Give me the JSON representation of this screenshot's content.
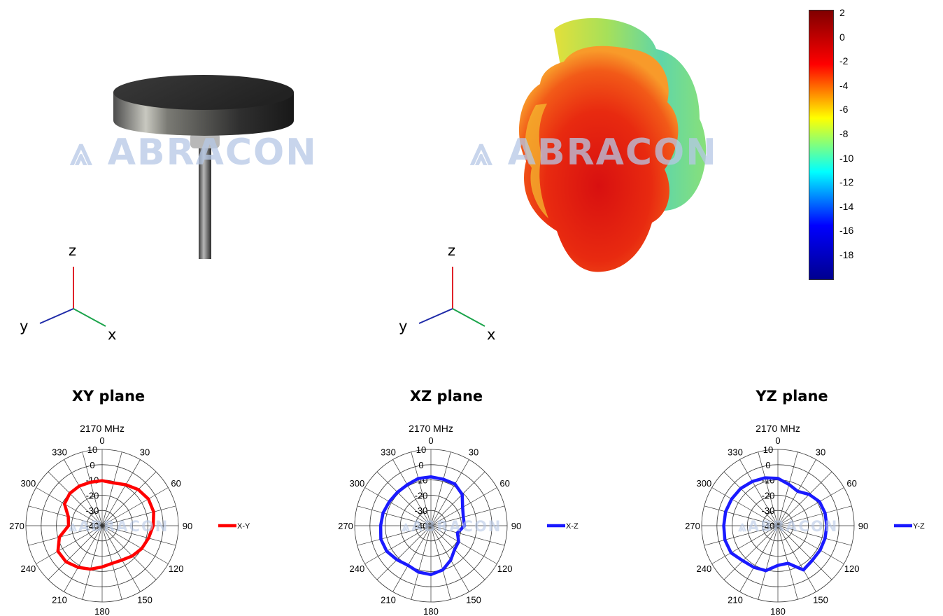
{
  "watermark": {
    "text": "ABRACON"
  },
  "axes_labels": {
    "z": "z",
    "y": "y",
    "x": "x"
  },
  "colorbar": {
    "labels": [
      "2",
      "0",
      "-2",
      "-4",
      "-6",
      "-8",
      "-10",
      "-12",
      "-14",
      "-16",
      "-18"
    ],
    "colors": [
      "#800000",
      "#ff0000",
      "#ffff00",
      "#00ffff",
      "#0000ff",
      "#00008f"
    ]
  },
  "plots": [
    {
      "title": "XY plane",
      "subtitle": "2170 MHz",
      "legend": "X-Y",
      "color": "#ff0000"
    },
    {
      "title": "XZ plane",
      "subtitle": "2170 MHz",
      "legend": "X-Z",
      "color": "#1a1aff"
    },
    {
      "title": "YZ plane",
      "subtitle": "2170 MHz",
      "legend": "Y-Z",
      "color": "#1a1aff"
    }
  ],
  "chart_data": [
    {
      "type": "polar",
      "title": "XY plane",
      "subtitle": "2170 MHz",
      "angle_ticks": [
        "0",
        "30",
        "60",
        "90",
        "120",
        "150",
        "180",
        "210",
        "240",
        "270",
        "300",
        "330"
      ],
      "radial_ticks": [
        "10",
        "0",
        "-10",
        "-20",
        "-30",
        "-40"
      ],
      "rlim": [
        -40,
        10
      ],
      "series": [
        {
          "name": "X-Y",
          "color": "#ff0000",
          "angles": [
            0,
            15,
            30,
            45,
            60,
            75,
            90,
            105,
            120,
            135,
            150,
            165,
            180,
            195,
            210,
            225,
            240,
            255,
            270,
            285,
            300,
            315,
            330,
            345
          ],
          "values": [
            -10.5,
            -11,
            -9,
            -6.5,
            -5,
            -5,
            -6.5,
            -8.5,
            -10,
            -12,
            -14,
            -14.5,
            -13,
            -10.5,
            -8.5,
            -6.5,
            -6.5,
            -11,
            -18,
            -17,
            -11.5,
            -10,
            -10,
            -10.5
          ]
        }
      ]
    },
    {
      "type": "polar",
      "title": "XZ plane",
      "subtitle": "2170 MHz",
      "angle_ticks": [
        "0",
        "30",
        "60",
        "90",
        "120",
        "150",
        "180",
        "210",
        "240",
        "270",
        "300",
        "330"
      ],
      "radial_ticks": [
        "10",
        "0",
        "-10",
        "-20",
        "-30",
        "-40"
      ],
      "rlim": [
        -40,
        10
      ],
      "series": [
        {
          "name": "X-Z",
          "color": "#1a1aff",
          "angles": [
            0,
            15,
            30,
            45,
            60,
            75,
            90,
            105,
            120,
            135,
            150,
            165,
            180,
            195,
            210,
            225,
            240,
            255,
            270,
            285,
            300,
            315,
            330,
            345
          ],
          "values": [
            -8,
            -8.5,
            -8.5,
            -11,
            -16,
            -18,
            -18,
            -22,
            -19,
            -18,
            -14,
            -10,
            -8,
            -8.5,
            -10,
            -8.5,
            -6.5,
            -6,
            -7,
            -7.5,
            -8.5,
            -9,
            -9,
            -8
          ]
        }
      ]
    },
    {
      "type": "polar",
      "title": "YZ plane",
      "subtitle": "2170 MHz",
      "angle_ticks": [
        "0",
        "30",
        "60",
        "90",
        "120",
        "150",
        "180",
        "210",
        "240",
        "270",
        "300",
        "330"
      ],
      "radial_ticks": [
        "10",
        "0",
        "-10",
        "-20",
        "-30",
        "-40"
      ],
      "rlim": [
        -40,
        10
      ],
      "series": [
        {
          "name": "Y-Z",
          "color": "#1a1aff",
          "angles": [
            0,
            15,
            30,
            45,
            60,
            75,
            90,
            105,
            120,
            135,
            150,
            165,
            180,
            195,
            210,
            225,
            240,
            255,
            270,
            285,
            300,
            315,
            330,
            345
          ],
          "values": [
            -9,
            -12,
            -14,
            -11,
            -8.5,
            -8,
            -8,
            -8,
            -8,
            -8,
            -6.5,
            -14.5,
            -14,
            -9.5,
            -8.5,
            -7.5,
            -4.5,
            -4,
            -4.5,
            -4.5,
            -5,
            -5.5,
            -6.5,
            -7.5
          ]
        }
      ]
    }
  ]
}
